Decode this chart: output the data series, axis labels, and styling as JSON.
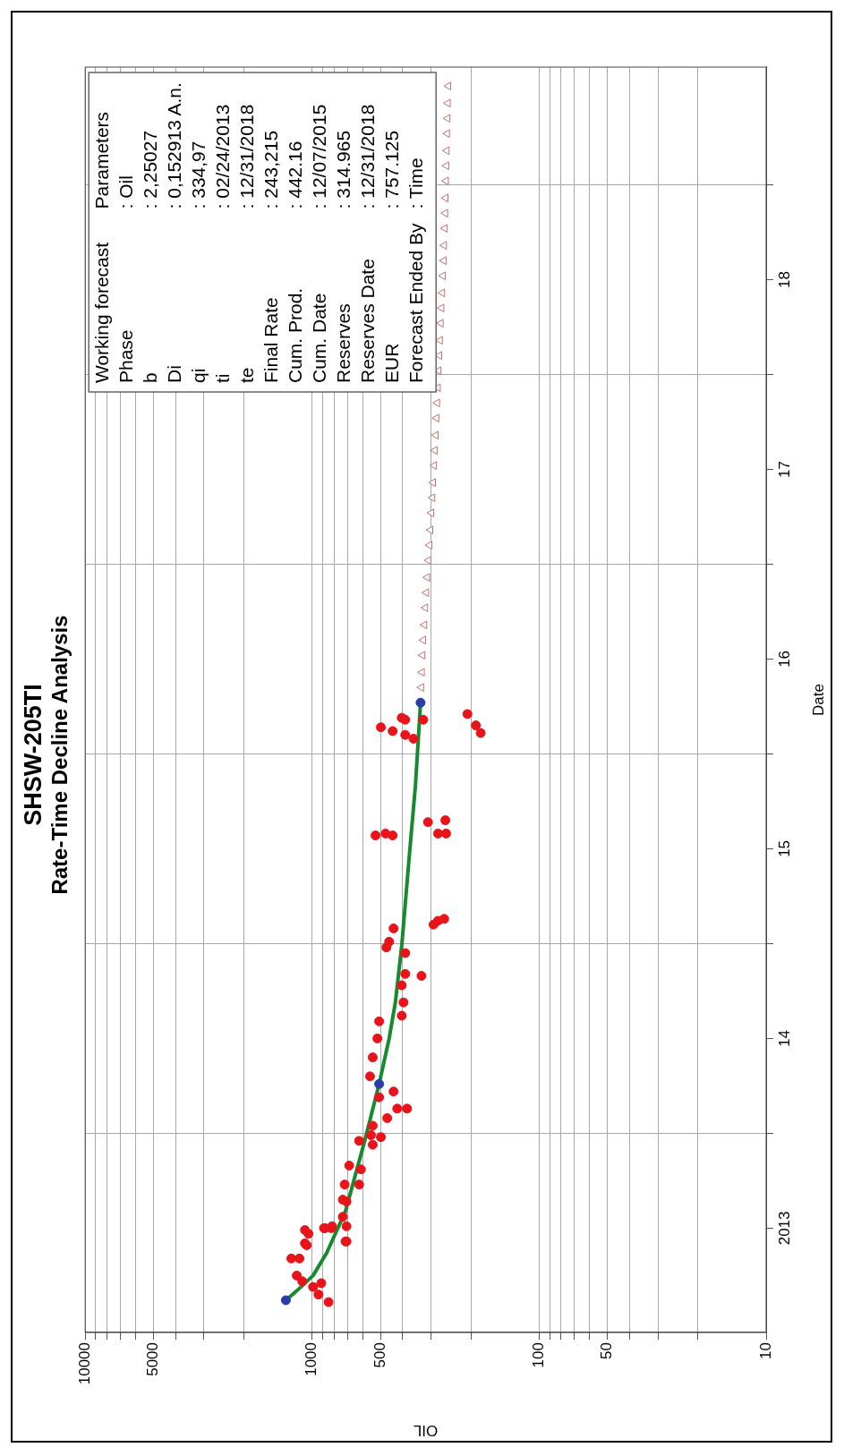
{
  "chart_data": {
    "type": "scatter",
    "title": "SHSW-205TI",
    "subtitle": "Rate-Time Decline Analysis",
    "xlabel": "OIL",
    "ylabel": "Date",
    "log": "x",
    "grid": true,
    "ylim": [
      2012.45,
      2019.12
    ],
    "yticks": [
      {
        "value": 2013,
        "label": "2013"
      },
      {
        "value": 2013.5,
        "label": null
      },
      {
        "value": 2014,
        "label": "14"
      },
      {
        "value": 2014.5,
        "label": null
      },
      {
        "value": 2015,
        "label": "15"
      },
      {
        "value": 2015.5,
        "label": null
      },
      {
        "value": 2016,
        "label": "16"
      },
      {
        "value": 2016.5,
        "label": null
      },
      {
        "value": 2017,
        "label": "17"
      },
      {
        "value": 2017.5,
        "label": null
      },
      {
        "value": 2018,
        "label": "18"
      },
      {
        "value": 2018.5,
        "label": null
      }
    ],
    "xlim": [
      10000,
      10
    ],
    "xticks": [
      10,
      {
        "value": 20,
        "label": null
      },
      {
        "value": 30,
        "label": null
      },
      {
        "value": 40,
        "label": null
      },
      50,
      {
        "value": 60,
        "label": null
      },
      {
        "value": 70,
        "label": null
      },
      {
        "value": 80,
        "label": null
      },
      {
        "value": 90,
        "label": null
      },
      100,
      {
        "value": 200,
        "label": null
      },
      {
        "value": 300,
        "label": null
      },
      {
        "value": 400,
        "label": null
      },
      500,
      {
        "value": 600,
        "label": null
      },
      {
        "value": 700,
        "label": null
      },
      {
        "value": 800,
        "label": null
      },
      {
        "value": 900,
        "label": null
      },
      1000,
      {
        "value": 2000,
        "label": null
      },
      {
        "value": 3000,
        "label": null
      },
      {
        "value": 4000,
        "label": null
      },
      5000,
      {
        "value": 6000,
        "label": null
      },
      {
        "value": 7000,
        "label": null
      },
      {
        "value": 8000,
        "label": null
      },
      {
        "value": 9000,
        "label": null
      },
      10000
    ],
    "annotations": [
      "Working forecast",
      "Parameters",
      "Phase",
      ": Oil",
      "b",
      ": 2,25027",
      "Di",
      ": 0,152913 A.n.",
      "qi",
      ": 334,97",
      "ti",
      ": 02/24/2013",
      "te",
      ": 12/31/2018",
      "Final Rate",
      ": 243,215",
      "Cum. Prod.",
      ": 442.16",
      "Cum. Date",
      ": 12/07/2015",
      "Reserves",
      ": 314.965",
      "Reserves Date",
      ": 12/31/2018",
      "EUR",
      ": 757.125",
      "Forecast Ended By",
      ": Time"
    ],
    "series": [
      {
        "type": "scatter",
        "marker": "triangle",
        "color": "#c86e6e",
        "values": [
          2015.85,
          2015.93,
          2016.02,
          2016.1,
          2016.18,
          2016.27,
          2016.35,
          2016.43,
          2016.52,
          2016.6,
          2016.68,
          2016.77,
          2016.85,
          2016.93,
          2017.02,
          2017.1,
          2017.18,
          2017.27,
          2017.35,
          2017.43,
          2017.52,
          2017.6,
          2017.68,
          2017.77,
          2017.85,
          2017.93,
          2018.02,
          2018.1,
          2018.18,
          2018.27,
          2018.35,
          2018.43,
          2018.52,
          2018.6,
          2018.68,
          2018.77,
          2018.85,
          2018.93,
          2019.02
        ],
        "x": [
          330,
          328,
          326,
          324,
          320,
          317,
          314,
          311,
          307,
          304,
          301,
          298,
          295,
          293,
          290,
          288,
          285,
          283,
          281,
          279,
          277,
          275,
          273,
          271,
          269,
          267,
          265,
          263,
          262,
          260,
          259,
          258,
          257,
          256,
          255,
          254,
          253,
          252,
          251
        ]
      },
      {
        "type": "line",
        "marker": "none",
        "color": "#178a2f",
        "values": [
          2012.62,
          2012.67,
          2012.75,
          2012.87,
          2013.09,
          2013.46,
          2013.76,
          2014.0,
          2014.19,
          2014.49,
          2015.0,
          2015.33,
          2015.77
        ],
        "x": [
          1306,
          1169,
          991,
          863,
          713,
          587,
          507,
          458,
          430,
          403,
          371,
          351,
          333
        ]
      },
      {
        "type": "scatter",
        "marker": "circle",
        "color": "#e8141a",
        "values": [
          2015.71,
          2015.65,
          2015.61,
          2015.69,
          2015.68,
          2015.68,
          2015.64,
          2015.62,
          2015.6,
          2015.58,
          2015.14,
          2015.15,
          2015.08,
          2015.08,
          2015.07,
          2015.08,
          2015.07,
          2014.62,
          2014.6,
          2014.63,
          2014.58,
          2014.51,
          2014.48,
          2014.45,
          2014.34,
          2014.33,
          2014.28,
          2014.19,
          2014.12,
          2014.09,
          2014.0,
          2013.9,
          2013.8,
          2013.69,
          2013.72,
          2013.63,
          2013.63,
          2013.58,
          2013.54,
          2013.49,
          2013.46,
          2013.48,
          2013.44,
          2013.33,
          2013.31,
          2013.23,
          2013.23,
          2013.14,
          2013.06,
          2013.01,
          2012.97,
          2013.0,
          2013.0,
          2012.91,
          2012.93,
          2012.84,
          2012.92,
          2012.75,
          2012.69,
          2012.71,
          2012.65,
          2012.61,
          2012.72,
          2012.84,
          2012.99,
          2013.0,
          2013.01,
          2012.93,
          2013.15
        ],
        "x": [
          207,
          190,
          181,
          403,
          389,
          324,
          498,
          442,
          389,
          358,
          309,
          259,
          279,
          257,
          526,
          475,
          442,
          279,
          292,
          262,
          438,
          458,
          471,
          389,
          389,
          330,
          403,
          396,
          403,
          507,
          516,
          541,
          556,
          507,
          438,
          422,
          382,
          467,
          541,
          551,
          621,
          498,
          541,
          687,
          610,
          719,
          621,
          706,
          733,
          706,
          1038,
          879,
          824,
          1057,
          706,
          1138,
          1076,
          1169,
          991,
          912,
          938,
          847,
          1106,
          1236,
          1076,
          887,
          817,
          713,
          733
        ]
      },
      {
        "type": "scatter",
        "marker": "circle",
        "color": "#2b3ca8",
        "values": [
          2012.62,
          2013.76,
          2015.77
        ],
        "x": [
          1306,
          507,
          333
        ]
      }
    ]
  }
}
